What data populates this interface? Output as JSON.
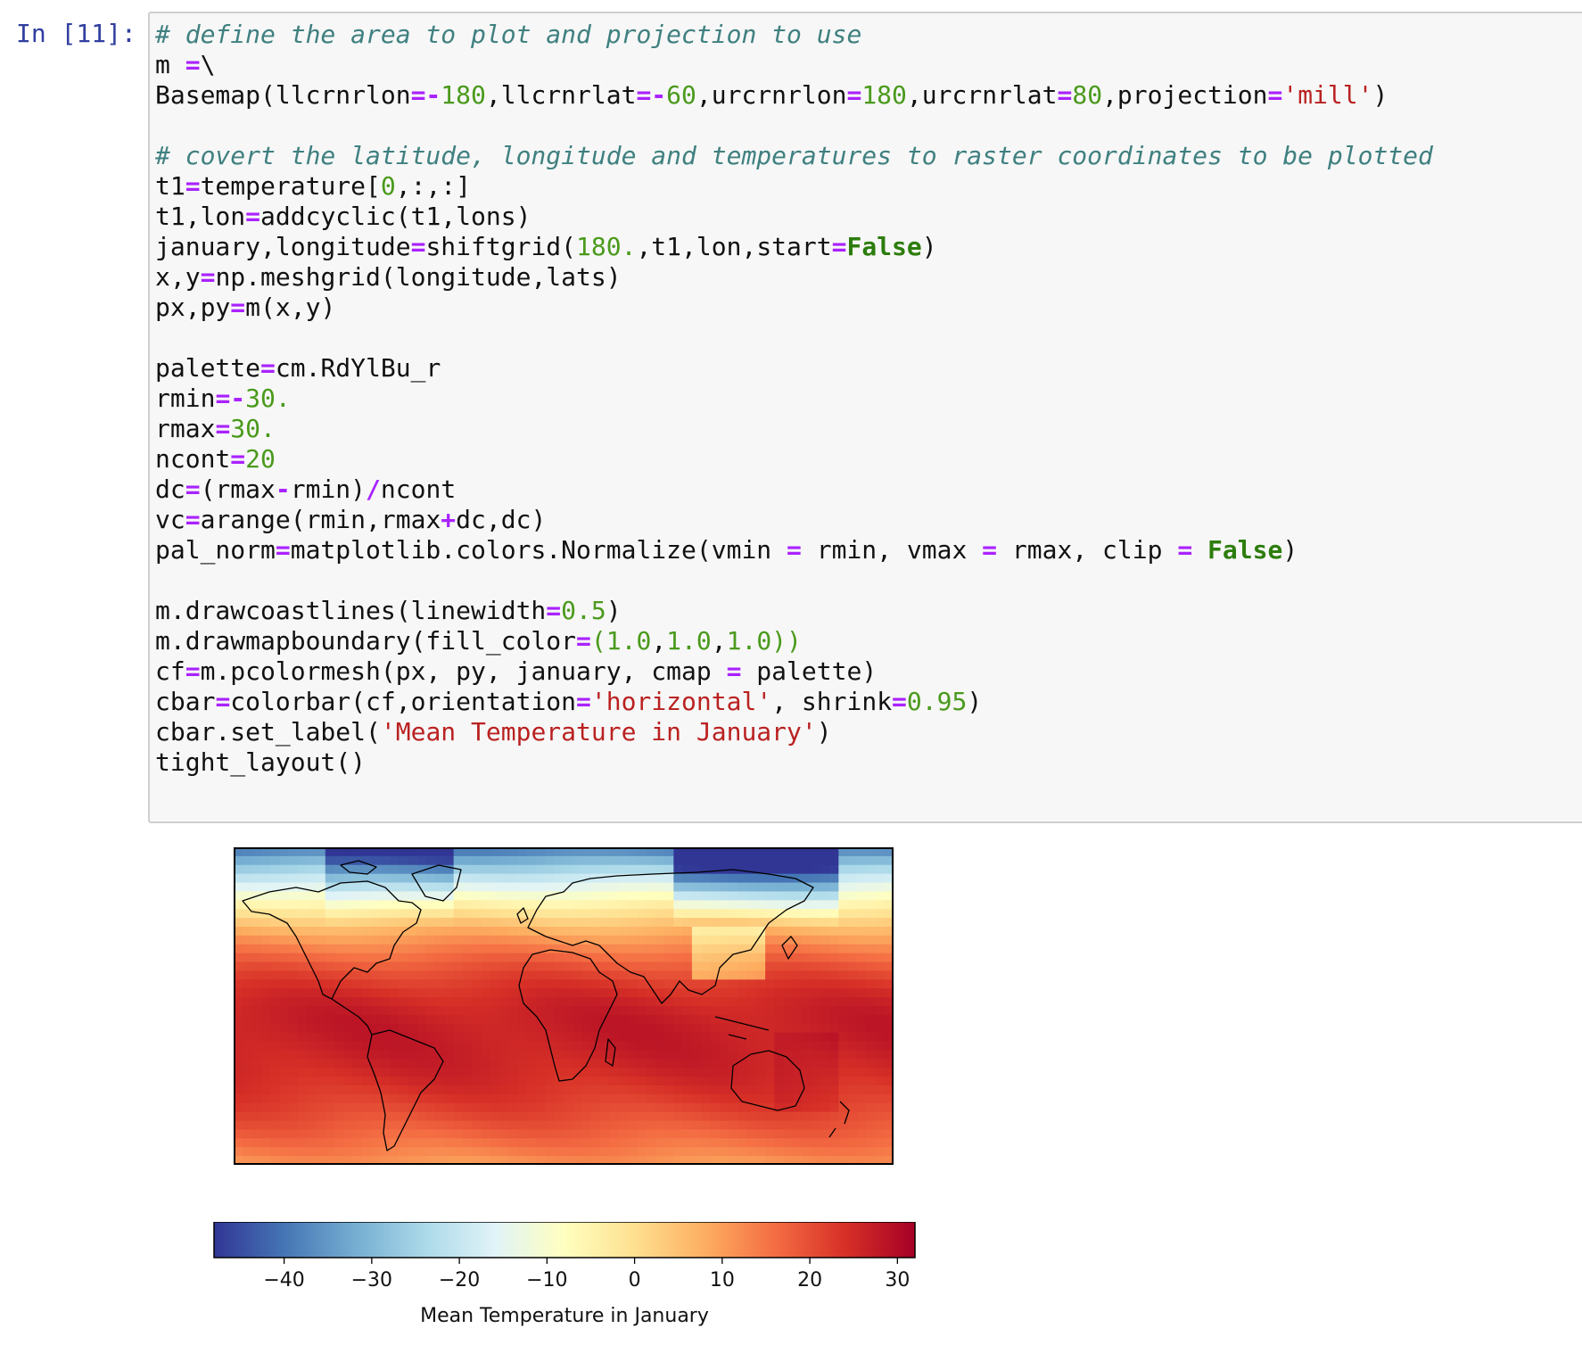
{
  "cell": {
    "prompt": "In [11]:",
    "lines": [
      [
        {
          "t": "comment",
          "s": "# define the area to plot and projection to use"
        }
      ],
      [
        {
          "t": "plain",
          "s": "m "
        },
        {
          "t": "op",
          "s": "="
        },
        {
          "t": "plain",
          "s": "\\"
        }
      ],
      [
        {
          "t": "plain",
          "s": "Basemap(llcrnrlon"
        },
        {
          "t": "op",
          "s": "=-"
        },
        {
          "t": "num",
          "s": "180"
        },
        {
          "t": "plain",
          "s": ",llcrnrlat"
        },
        {
          "t": "op",
          "s": "=-"
        },
        {
          "t": "num",
          "s": "60"
        },
        {
          "t": "plain",
          "s": ",urcrnrlon"
        },
        {
          "t": "op",
          "s": "="
        },
        {
          "t": "num",
          "s": "180"
        },
        {
          "t": "plain",
          "s": ",urcrnrlat"
        },
        {
          "t": "op",
          "s": "="
        },
        {
          "t": "num",
          "s": "80"
        },
        {
          "t": "plain",
          "s": ",projection"
        },
        {
          "t": "op",
          "s": "="
        },
        {
          "t": "str",
          "s": "'mill'"
        },
        {
          "t": "plain",
          "s": ")"
        }
      ],
      [],
      [
        {
          "t": "comment",
          "s": "# covert the latitude, longitude and temperatures to raster coordinates to be plotted"
        }
      ],
      [
        {
          "t": "plain",
          "s": "t1"
        },
        {
          "t": "op",
          "s": "="
        },
        {
          "t": "plain",
          "s": "temperature["
        },
        {
          "t": "num",
          "s": "0"
        },
        {
          "t": "plain",
          "s": ",:,:]"
        }
      ],
      [
        {
          "t": "plain",
          "s": "t1,lon"
        },
        {
          "t": "op",
          "s": "="
        },
        {
          "t": "plain",
          "s": "addcyclic(t1,lons)"
        }
      ],
      [
        {
          "t": "plain",
          "s": "january,longitude"
        },
        {
          "t": "op",
          "s": "="
        },
        {
          "t": "plain",
          "s": "shiftgrid("
        },
        {
          "t": "num",
          "s": "180."
        },
        {
          "t": "plain",
          "s": ",t1,lon,start"
        },
        {
          "t": "op",
          "s": "="
        },
        {
          "t": "kw",
          "s": "False"
        },
        {
          "t": "plain",
          "s": ")"
        }
      ],
      [
        {
          "t": "plain",
          "s": "x,y"
        },
        {
          "t": "op",
          "s": "="
        },
        {
          "t": "plain",
          "s": "np.meshgrid(longitude,lats)"
        }
      ],
      [
        {
          "t": "plain",
          "s": "px,py"
        },
        {
          "t": "op",
          "s": "="
        },
        {
          "t": "plain",
          "s": "m(x,y)"
        }
      ],
      [],
      [
        {
          "t": "plain",
          "s": "palette"
        },
        {
          "t": "op",
          "s": "="
        },
        {
          "t": "plain",
          "s": "cm.RdYlBu_r"
        }
      ],
      [
        {
          "t": "plain",
          "s": "rmin"
        },
        {
          "t": "op",
          "s": "=-"
        },
        {
          "t": "num",
          "s": "30."
        }
      ],
      [
        {
          "t": "plain",
          "s": "rmax"
        },
        {
          "t": "op",
          "s": "="
        },
        {
          "t": "num",
          "s": "30."
        }
      ],
      [
        {
          "t": "plain",
          "s": "ncont"
        },
        {
          "t": "op",
          "s": "="
        },
        {
          "t": "num",
          "s": "20"
        }
      ],
      [
        {
          "t": "plain",
          "s": "dc"
        },
        {
          "t": "op",
          "s": "="
        },
        {
          "t": "plain",
          "s": "(rmax"
        },
        {
          "t": "op",
          "s": "-"
        },
        {
          "t": "plain",
          "s": "rmin)"
        },
        {
          "t": "op",
          "s": "/"
        },
        {
          "t": "plain",
          "s": "ncont"
        }
      ],
      [
        {
          "t": "plain",
          "s": "vc"
        },
        {
          "t": "op",
          "s": "="
        },
        {
          "t": "plain",
          "s": "arange(rmin,rmax"
        },
        {
          "t": "op",
          "s": "+"
        },
        {
          "t": "plain",
          "s": "dc,dc)"
        }
      ],
      [
        {
          "t": "plain",
          "s": "pal_norm"
        },
        {
          "t": "op",
          "s": "="
        },
        {
          "t": "plain",
          "s": "matplotlib.colors.Normalize(vmin "
        },
        {
          "t": "op",
          "s": "="
        },
        {
          "t": "plain",
          "s": " rmin, vmax "
        },
        {
          "t": "op",
          "s": "="
        },
        {
          "t": "plain",
          "s": " rmax, clip "
        },
        {
          "t": "op",
          "s": "="
        },
        {
          "t": "plain",
          "s": " "
        },
        {
          "t": "kw",
          "s": "False"
        },
        {
          "t": "plain",
          "s": ")"
        }
      ],
      [],
      [
        {
          "t": "plain",
          "s": "m.drawcoastlines(linewidth"
        },
        {
          "t": "op",
          "s": "="
        },
        {
          "t": "num",
          "s": "0.5"
        },
        {
          "t": "plain",
          "s": ")"
        }
      ],
      [
        {
          "t": "plain",
          "s": "m.drawmapboundary(fill_color"
        },
        {
          "t": "op",
          "s": "="
        },
        {
          "t": "num",
          "s": "(1.0"
        },
        {
          "t": "plain",
          "s": ","
        },
        {
          "t": "num",
          "s": "1.0"
        },
        {
          "t": "plain",
          "s": ","
        },
        {
          "t": "num",
          "s": "1.0))"
        }
      ],
      [
        {
          "t": "plain",
          "s": "cf"
        },
        {
          "t": "op",
          "s": "="
        },
        {
          "t": "plain",
          "s": "m.pcolormesh(px, py, january, cmap "
        },
        {
          "t": "op",
          "s": "="
        },
        {
          "t": "plain",
          "s": " palette)"
        }
      ],
      [
        {
          "t": "plain",
          "s": "cbar"
        },
        {
          "t": "op",
          "s": "="
        },
        {
          "t": "plain",
          "s": "colorbar(cf,orientation"
        },
        {
          "t": "op",
          "s": "="
        },
        {
          "t": "str",
          "s": "'horizontal'"
        },
        {
          "t": "plain",
          "s": ", shrink"
        },
        {
          "t": "op",
          "s": "="
        },
        {
          "t": "num",
          "s": "0.95"
        },
        {
          "t": "plain",
          "s": ")"
        }
      ],
      [
        {
          "t": "plain",
          "s": "cbar.set_label("
        },
        {
          "t": "str",
          "s": "'Mean Temperature in January'"
        },
        {
          "t": "plain",
          "s": ")"
        }
      ],
      [
        {
          "t": "plain",
          "s": "tight_layout()"
        }
      ]
    ]
  },
  "chart_data": {
    "type": "heatmap",
    "title": "",
    "projection": "mill",
    "lon_range": [
      -180,
      180
    ],
    "lat_range": [
      -60,
      80
    ],
    "colormap": "RdYlBu_r",
    "colorbar": {
      "orientation": "horizontal",
      "label": "Mean Temperature in January",
      "range": [
        -48,
        32
      ],
      "ticks": [
        -40,
        -30,
        -20,
        -10,
        0,
        10,
        20,
        30
      ],
      "tick_labels": [
        "−40",
        "−30",
        "−20",
        "−10",
        "0",
        "10",
        "20",
        "30"
      ]
    }
  },
  "colors": {
    "cmap_stops": [
      "#313695",
      "#4575b4",
      "#74add1",
      "#abd9e9",
      "#e0f3f8",
      "#ffffbf",
      "#fee090",
      "#fdae61",
      "#f46d43",
      "#d73027",
      "#a50026"
    ],
    "coastline": "#000000"
  }
}
